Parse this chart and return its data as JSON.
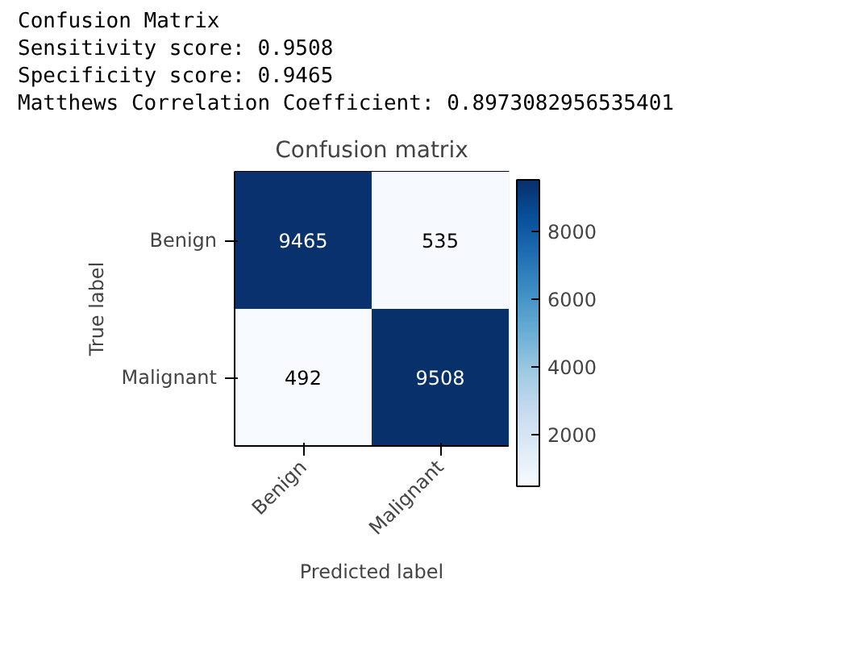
{
  "chart_data": {
    "type": "heatmap",
    "title": "Confusion matrix",
    "xlabel": "Predicted label",
    "ylabel": "True label",
    "annotations": [
      "Confusion Matrix",
      "Sensitivity score: 0.9508",
      "Specificity score: 0.9465",
      "Matthews Correlation Coefficient: 0.8973082956535401"
    ],
    "categories": [
      "Benign",
      "Malignant"
    ],
    "y_categories": [
      "Benign",
      "Malignant"
    ],
    "cells": [
      [
        9465,
        535
      ],
      [
        492,
        9508
      ]
    ],
    "clim": [
      492,
      9508
    ],
    "cticks": [
      2000,
      4000,
      6000,
      8000
    ],
    "data_labels": true
  }
}
